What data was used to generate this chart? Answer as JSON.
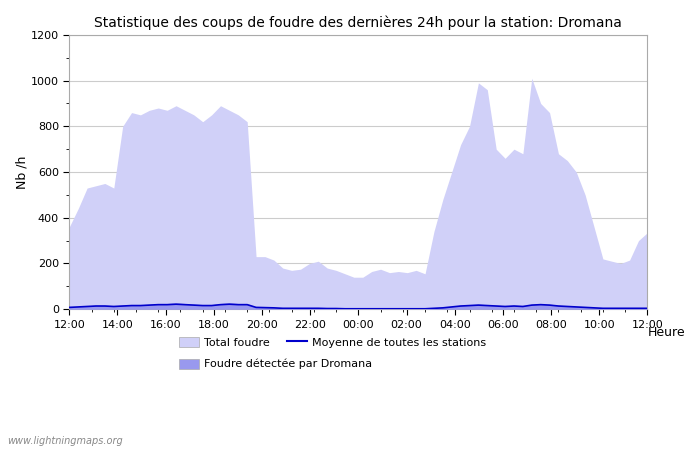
{
  "title": "Statistique des coups de foudre des dernières 24h pour la station: Dromana",
  "xlabel": "Heure",
  "ylabel": "Nb /h",
  "watermark": "www.lightningmaps.org",
  "ylim": [
    0,
    1200
  ],
  "yticks": [
    0,
    200,
    400,
    600,
    800,
    1000,
    1200
  ],
  "xtick_labels": [
    "12:00",
    "14:00",
    "16:00",
    "18:00",
    "20:00",
    "22:00",
    "00:00",
    "02:00",
    "04:00",
    "06:00",
    "08:00",
    "10:00",
    "12:00"
  ],
  "legend": {
    "total_foudre_label": "Total foudre",
    "total_foudre_color": "#d0d0f8",
    "detected_label": "Foudre détectée par Dromana",
    "detected_color": "#9999ee",
    "moyenne_label": "Moyenne de toutes les stations",
    "moyenne_color": "#0000cc"
  },
  "total_foudre": [
    360,
    440,
    530,
    540,
    550,
    530,
    800,
    860,
    850,
    870,
    880,
    870,
    890,
    870,
    850,
    820,
    850,
    890,
    870,
    850,
    820,
    230,
    230,
    215,
    180,
    170,
    175,
    200,
    210,
    180,
    170,
    155,
    140,
    140,
    165,
    175,
    160,
    165,
    160,
    170,
    155,
    340,
    480,
    600,
    720,
    800,
    990,
    960,
    700,
    660,
    700,
    680,
    1010,
    900,
    860,
    680,
    650,
    600,
    500,
    360,
    220,
    210,
    200,
    215,
    300,
    335
  ],
  "detected": [
    10,
    12,
    15,
    18,
    18,
    15,
    18,
    20,
    20,
    22,
    25,
    25,
    28,
    25,
    22,
    20,
    20,
    25,
    28,
    25,
    25,
    10,
    8,
    7,
    5,
    5,
    5,
    5,
    5,
    4,
    3,
    3,
    3,
    2,
    2,
    2,
    2,
    2,
    2,
    2,
    2,
    5,
    8,
    12,
    18,
    20,
    22,
    20,
    18,
    15,
    18,
    15,
    22,
    25,
    22,
    18,
    15,
    12,
    10,
    8,
    5,
    5,
    5,
    5,
    5,
    5
  ],
  "moyenne": [
    8,
    10,
    12,
    14,
    14,
    12,
    14,
    16,
    16,
    18,
    20,
    20,
    22,
    20,
    18,
    16,
    16,
    20,
    22,
    20,
    20,
    8,
    7,
    6,
    4,
    4,
    4,
    4,
    4,
    3,
    3,
    2,
    2,
    2,
    2,
    2,
    2,
    2,
    2,
    2,
    2,
    4,
    6,
    10,
    14,
    16,
    18,
    16,
    14,
    12,
    14,
    12,
    18,
    20,
    18,
    14,
    12,
    10,
    8,
    6,
    4,
    4,
    4,
    4,
    4,
    4
  ],
  "bg_color": "#ffffff",
  "plot_bg_color": "#ffffff",
  "grid_color": "#cccccc",
  "area_color_total": "#d0d0f8",
  "area_color_detected": "#9999ee",
  "line_color": "#0000cc",
  "title_fontsize": 10,
  "tick_fontsize": 8,
  "label_fontsize": 9
}
